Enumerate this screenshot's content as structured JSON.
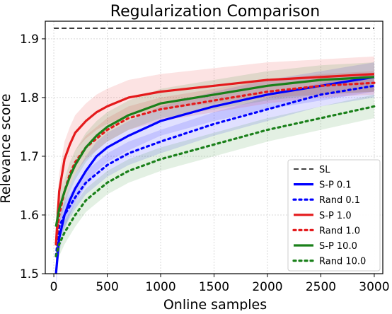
{
  "chart_data": {
    "type": "line",
    "title": "Regularization Comparison",
    "xlabel": "Online samples",
    "ylabel": "Relevance score",
    "xlim": [
      -80,
      3080
    ],
    "ylim": [
      1.5,
      1.93
    ],
    "xticks": [
      0,
      500,
      1000,
      1500,
      2000,
      2500,
      3000
    ],
    "xtick_labels": [
      "0",
      "500",
      "1000",
      "1500",
      "2000",
      "2500",
      "3000"
    ],
    "yticks": [
      1.5,
      1.6,
      1.7,
      1.8,
      1.9
    ],
    "ytick_labels": [
      "1.5",
      "1.6",
      "1.7",
      "1.8",
      "1.9"
    ],
    "grid": true,
    "legend_position": "lower-right",
    "colors": {
      "black": "#000000",
      "blue": "#0000ff",
      "red": "#e41a1c",
      "green": "#1a801a"
    },
    "series": [
      {
        "name": "SL",
        "color": "#000000",
        "dash": "dashed",
        "band": 0,
        "x": [
          0,
          3000
        ],
        "y": [
          1.918,
          1.918
        ]
      },
      {
        "name": "S-P 0.1",
        "color": "#0000ff",
        "dash": "solid",
        "band": 0.025,
        "x": [
          20,
          50,
          100,
          150,
          200,
          300,
          400,
          500,
          700,
          1000,
          1500,
          2000,
          2500,
          3000
        ],
        "y": [
          1.5,
          1.56,
          1.6,
          1.625,
          1.645,
          1.675,
          1.7,
          1.715,
          1.735,
          1.76,
          1.785,
          1.805,
          1.82,
          1.835
        ]
      },
      {
        "name": "Rand 0.1",
        "color": "#0000ff",
        "dash": "dotted",
        "band": 0.02,
        "x": [
          20,
          50,
          100,
          150,
          200,
          300,
          400,
          500,
          700,
          1000,
          1500,
          2000,
          2500,
          3000
        ],
        "y": [
          1.53,
          1.58,
          1.6,
          1.615,
          1.63,
          1.655,
          1.67,
          1.685,
          1.705,
          1.725,
          1.755,
          1.78,
          1.805,
          1.82
        ]
      },
      {
        "name": "S-P 1.0",
        "color": "#e41a1c",
        "dash": "solid",
        "band": 0.03,
        "x": [
          20,
          50,
          100,
          150,
          200,
          300,
          400,
          500,
          700,
          1000,
          1500,
          2000,
          2500,
          3000
        ],
        "y": [
          1.55,
          1.64,
          1.695,
          1.72,
          1.74,
          1.76,
          1.775,
          1.785,
          1.8,
          1.81,
          1.82,
          1.83,
          1.835,
          1.84
        ]
      },
      {
        "name": "Rand 1.0",
        "color": "#e41a1c",
        "dash": "dotted",
        "band": 0.02,
        "x": [
          20,
          50,
          100,
          150,
          200,
          300,
          400,
          500,
          700,
          1000,
          1500,
          2000,
          2500,
          3000
        ],
        "y": [
          1.55,
          1.6,
          1.64,
          1.67,
          1.69,
          1.715,
          1.73,
          1.745,
          1.765,
          1.78,
          1.795,
          1.81,
          1.82,
          1.825
        ]
      },
      {
        "name": "S-P 10.0",
        "color": "#1a801a",
        "dash": "solid",
        "band": 0.025,
        "x": [
          20,
          50,
          100,
          150,
          200,
          300,
          400,
          500,
          700,
          1000,
          1500,
          2000,
          2500,
          3000
        ],
        "y": [
          1.58,
          1.61,
          1.64,
          1.665,
          1.685,
          1.715,
          1.735,
          1.75,
          1.77,
          1.79,
          1.805,
          1.82,
          1.83,
          1.835
        ]
      },
      {
        "name": "Rand 10.0",
        "color": "#1a801a",
        "dash": "dotted",
        "band": 0.02,
        "x": [
          20,
          50,
          100,
          150,
          200,
          300,
          400,
          500,
          700,
          1000,
          1500,
          2000,
          2500,
          3000
        ],
        "y": [
          1.53,
          1.55,
          1.57,
          1.585,
          1.6,
          1.625,
          1.64,
          1.655,
          1.675,
          1.695,
          1.72,
          1.745,
          1.765,
          1.785
        ]
      }
    ]
  }
}
